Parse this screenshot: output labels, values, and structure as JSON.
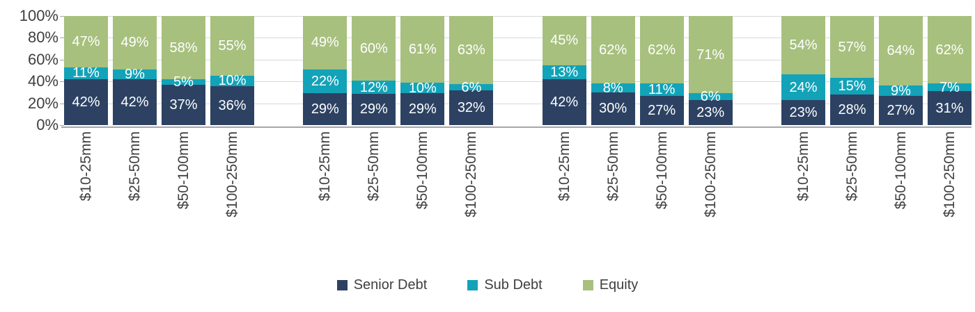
{
  "chart_data": {
    "type": "bar",
    "stacked": true,
    "unit": "%",
    "title": "",
    "ylim": [
      0,
      100
    ],
    "y_ticks": [
      "100%",
      "80%",
      "60%",
      "40%",
      "20%",
      "0%"
    ],
    "grid": true,
    "legend_position": "bottom",
    "series_order_bottom_to_top": [
      "Senior Debt",
      "Sub Debt",
      "Equity"
    ],
    "colors": {
      "senior_debt": "#2d4263",
      "sub_debt": "#12a3b8",
      "equity": "#a7c07e"
    },
    "groups": [
      {
        "bars": [
          {
            "category": "$10-25mm",
            "senior_debt": 42,
            "sub_debt": 11,
            "equity": 47
          },
          {
            "category": "$25-50mm",
            "senior_debt": 42,
            "sub_debt": 9,
            "equity": 49
          },
          {
            "category": "$50-100mm",
            "senior_debt": 37,
            "sub_debt": 5,
            "equity": 58
          },
          {
            "category": "$100-250mm",
            "senior_debt": 36,
            "sub_debt": 10,
            "equity": 55
          }
        ]
      },
      {
        "bars": [
          {
            "category": "$10-25mm",
            "senior_debt": 29,
            "sub_debt": 22,
            "equity": 49
          },
          {
            "category": "$25-50mm",
            "senior_debt": 29,
            "sub_debt": 12,
            "equity": 60
          },
          {
            "category": "$50-100mm",
            "senior_debt": 29,
            "sub_debt": 10,
            "equity": 61
          },
          {
            "category": "$100-250mm",
            "senior_debt": 32,
            "sub_debt": 6,
            "equity": 63
          }
        ]
      },
      {
        "bars": [
          {
            "category": "$10-25mm",
            "senior_debt": 42,
            "sub_debt": 13,
            "equity": 45
          },
          {
            "category": "$25-50mm",
            "senior_debt": 30,
            "sub_debt": 8,
            "equity": 62
          },
          {
            "category": "$50-100mm",
            "senior_debt": 27,
            "sub_debt": 11,
            "equity": 62
          },
          {
            "category": "$100-250mm",
            "senior_debt": 23,
            "sub_debt": 6,
            "equity": 71
          }
        ]
      },
      {
        "bars": [
          {
            "category": "$10-25mm",
            "senior_debt": 23,
            "sub_debt": 24,
            "equity": 54
          },
          {
            "category": "$25-50mm",
            "senior_debt": 28,
            "sub_debt": 15,
            "equity": 57
          },
          {
            "category": "$50-100mm",
            "senior_debt": 27,
            "sub_debt": 9,
            "equity": 64
          },
          {
            "category": "$100-250mm",
            "senior_debt": 31,
            "sub_debt": 7,
            "equity": 62
          }
        ]
      }
    ]
  },
  "legend": {
    "items": [
      {
        "label": "Senior Debt",
        "color": "#2d4263"
      },
      {
        "label": "Sub Debt",
        "color": "#12a3b8"
      },
      {
        "label": "Equity",
        "color": "#a7c07e"
      }
    ]
  }
}
